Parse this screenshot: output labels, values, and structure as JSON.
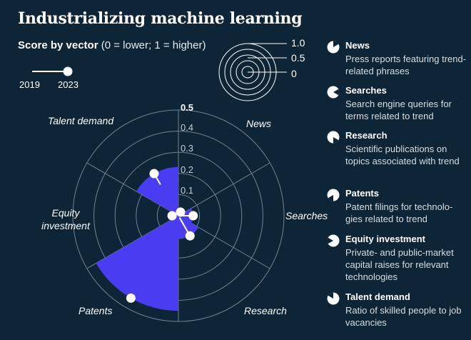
{
  "title": "Industrializing machine learning",
  "subtitle": {
    "bold": "Score by vector",
    "normal": "(0 = lower; 1 = higher)"
  },
  "years": {
    "start": "2019",
    "end": "2023"
  },
  "scale_legend": {
    "high": "1.0",
    "mid": "0.5",
    "low": "0"
  },
  "legend": [
    {
      "name": "News",
      "desc": "Press reports featuring trend-related phrases"
    },
    {
      "name": "Searches",
      "desc": "Search engine queries for terms related to trend"
    },
    {
      "name": "Research",
      "desc": "Scientific publications on topics associated with trend"
    },
    {
      "name": "Patents",
      "desc": "Patent filings for technolo-gies related to trend"
    },
    {
      "name": "Equity investment",
      "desc": "Private- and public-market capital raises for relevant technologies"
    },
    {
      "name": "Talent demand",
      "desc": "Ratio of skilled people to job vacancies"
    }
  ],
  "colors": {
    "background": "#0d2536",
    "area": "#4a3cf0",
    "grid": "#6f8494",
    "marker": "#ffffff"
  },
  "chart_data": {
    "type": "polar-area",
    "title": "Industrializing machine learning",
    "categories": [
      "News",
      "Searches",
      "Research",
      "Patents",
      "Equity investment",
      "Talent demand"
    ],
    "radial_ticks": [
      "0.1",
      "0.2",
      "0.3",
      "0.4",
      "0.5"
    ],
    "rlim": [
      0,
      0.5
    ],
    "series": [
      {
        "name": "2019",
        "values": [
          0.01,
          0.01,
          0.01,
          0.45,
          0.02,
          0.17
        ]
      },
      {
        "name": "2023",
        "values": [
          0.02,
          0.07,
          0.11,
          0.45,
          0.03,
          0.23
        ]
      }
    ]
  }
}
